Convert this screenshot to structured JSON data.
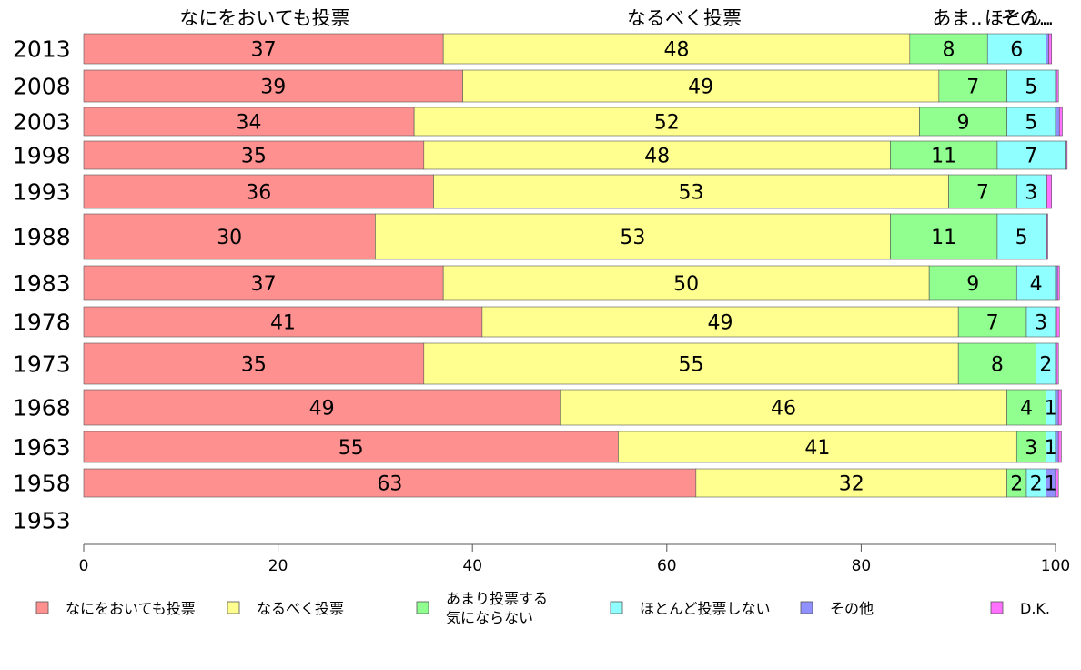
{
  "chart_data": {
    "type": "bar",
    "orientation": "horizontal",
    "stacked": true,
    "categories": [
      "2013",
      "2008",
      "2003",
      "1998",
      "1993",
      "1988",
      "1983",
      "1978",
      "1973",
      "1968",
      "1963",
      "1958",
      "1953"
    ],
    "series": [
      {
        "name": "なにをおいても投票",
        "color": "#ff9090",
        "values": [
          37,
          39,
          34,
          35,
          36,
          30,
          37,
          41,
          35,
          49,
          55,
          63,
          null
        ]
      },
      {
        "name": "なるべく投票",
        "color": "#ffff90",
        "values": [
          48,
          49,
          52,
          48,
          53,
          53,
          50,
          49,
          55,
          46,
          41,
          32,
          null
        ]
      },
      {
        "name": "あまり投票する気にならない",
        "color": "#90ff90",
        "values": [
          8,
          7,
          9,
          11,
          7,
          11,
          9,
          7,
          8,
          4,
          3,
          2,
          null
        ]
      },
      {
        "name": "ほとんど投票しない",
        "color": "#90ffff",
        "values": [
          6,
          5,
          5,
          7,
          3,
          5,
          4,
          3,
          2,
          1,
          1,
          2,
          null
        ]
      },
      {
        "name": "その他",
        "color": "#9090ff",
        "values": [
          0.3,
          0.1,
          0.4,
          0.1,
          0.1,
          0.1,
          0.2,
          0.1,
          0.1,
          0.3,
          0.3,
          1,
          null
        ]
      },
      {
        "name": "D.K.",
        "color": "#ff70ff",
        "values": [
          0.3,
          0.2,
          0.3,
          0.1,
          0.5,
          0.1,
          0.2,
          0.3,
          0.2,
          0.3,
          0.3,
          0.3,
          null
        ]
      }
    ],
    "header_labels": [
      "なにをおいても投票",
      "なるべく投票",
      "あま..",
      "ほとん..",
      "その.."
    ],
    "legend_labels": [
      {
        "lines": [
          "なにをおいても投票"
        ]
      },
      {
        "lines": [
          "なるべく投票"
        ]
      },
      {
        "lines": [
          "あまり投票する",
          "気にならない"
        ]
      },
      {
        "lines": [
          "ほとんど投票しない"
        ]
      },
      {
        "lines": [
          "その他"
        ]
      },
      {
        "lines": [
          "D.K."
        ]
      }
    ],
    "x_ticks": [
      "0",
      "20",
      "40",
      "60",
      "80",
      "100"
    ],
    "xlim": [
      0,
      100
    ],
    "grid": false,
    "legend_position": "bottom"
  }
}
